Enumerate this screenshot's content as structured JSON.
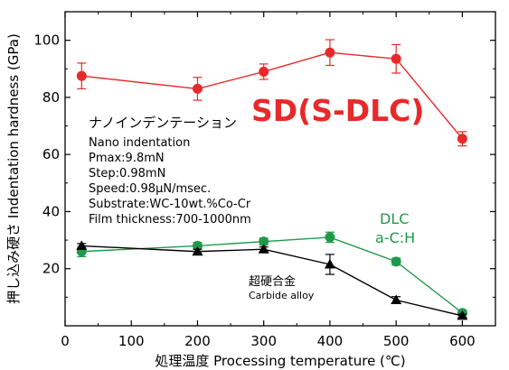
{
  "chart_data": {
    "type": "line",
    "xlabel": "処理温度 Processing temperature (℃)",
    "ylabel": "押し込み硬さ Indentation hardness (GPa)",
    "xlim": [
      0,
      650
    ],
    "ylim": [
      0,
      110
    ],
    "xticks": [
      0,
      100,
      200,
      300,
      400,
      500,
      600
    ],
    "yticks": [
      20,
      40,
      60,
      80,
      100
    ],
    "grid": false,
    "series": [
      {
        "name": "SD(S-DLC)",
        "color": "#e8292a",
        "marker": "circle",
        "x": [
          25,
          200,
          300,
          400,
          500,
          600
        ],
        "y": [
          87.5,
          83,
          89,
          95.7,
          93.5,
          65.5
        ],
        "err": [
          4.5,
          4,
          2.7,
          4.5,
          5,
          2.5
        ]
      },
      {
        "name": "DLC a-C:H",
        "color": "#1f9a4a",
        "marker": "circle",
        "x": [
          25,
          200,
          300,
          400,
          500,
          600
        ],
        "y": [
          26,
          28,
          29.5,
          31,
          22.5,
          4.5
        ],
        "err": [
          1.8,
          1.2,
          1.2,
          1.8,
          1.2,
          1
        ]
      },
      {
        "name": "超硬合金 Carbide alloy",
        "color": "#000000",
        "marker": "triangle",
        "x": [
          25,
          200,
          300,
          400,
          500,
          600
        ],
        "y": [
          28,
          26,
          26.8,
          21.5,
          9,
          3.5
        ],
        "err": [
          0.8,
          0.8,
          0.8,
          3.5,
          1.2,
          0.6
        ]
      }
    ],
    "annotations": {
      "series_labels": {
        "sd": "SD(S-DLC)",
        "dlc_line1": "DLC",
        "dlc_line2": "a-C:H",
        "carbide_jp": "超硬合金",
        "carbide_en": "Carbide alloy"
      },
      "conditions": [
        "ナノインデンテーション",
        "Nano indentation",
        "Pmax:9.8mN",
        "Step:0.98mN",
        "Speed:0.98μN/msec.",
        "Substrate:WC-10wt.%Co-Cr",
        "Film thickness:700-1000nm"
      ]
    }
  }
}
